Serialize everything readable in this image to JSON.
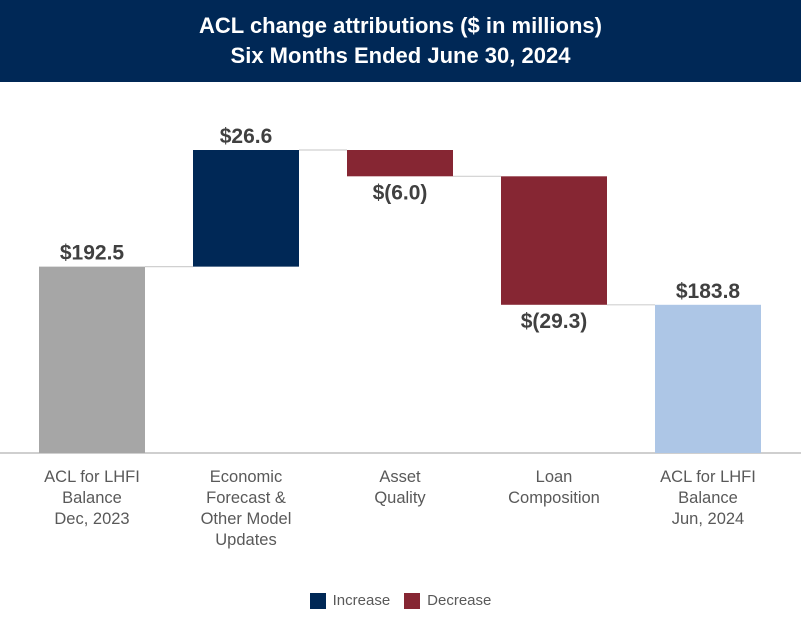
{
  "header": {
    "title": "ACL change attributions ($ in millions)",
    "subtitle": "Six Months Ended June 30, 2024"
  },
  "chart_data": {
    "type": "waterfall",
    "title": "ACL change attributions ($ in millions)",
    "subtitle": "Six Months Ended June 30, 2024",
    "categories": [
      "ACL for LHFI\nBalance\nDec, 2023",
      "Economic\nForecast &\nOther Model\nUpdates",
      "Asset\nQuality",
      "Loan\nComposition",
      "ACL for LHFI\nBalance\nJun, 2024"
    ],
    "values": [
      192.5,
      26.6,
      -6.0,
      -29.3,
      183.8
    ],
    "kinds": [
      "total",
      "increase",
      "decrease",
      "decrease",
      "total"
    ],
    "data_labels": [
      "$192.5",
      "$26.6",
      "$(6.0)",
      "$(29.3)",
      "$183.8"
    ],
    "ylim": [
      150,
      222
    ],
    "grid": false,
    "legend": {
      "position": "bottom",
      "entries": [
        {
          "name": "Increase",
          "color": "#002856"
        },
        {
          "name": "Decrease",
          "color": "#862633"
        }
      ]
    },
    "colors": {
      "start_total": "#a6a6a6",
      "end_total": "#adc6e6",
      "increase": "#002856",
      "decrease": "#862633"
    }
  }
}
